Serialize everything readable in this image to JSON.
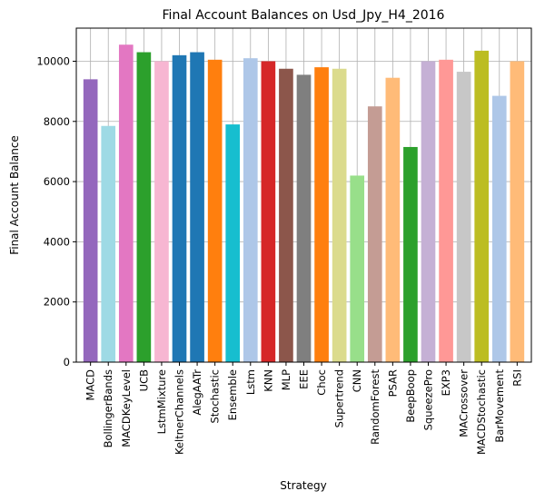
{
  "chart_data": {
    "type": "bar",
    "title": "Final Account Balances on Usd_Jpy_H4_2016",
    "xlabel": "Strategy",
    "ylabel": "Final Account Balance",
    "ylim": [
      0,
      11100
    ],
    "yticks": [
      0,
      2000,
      4000,
      6000,
      8000,
      10000
    ],
    "grid": true,
    "categories": [
      "MACD",
      "BollingerBands",
      "MACDKeyLevel",
      "UCB",
      "LstmMixture",
      "KeltnerChannels",
      "AlegAATr",
      "Stochastic",
      "Ensemble",
      "Lstm",
      "KNN",
      "MLP",
      "EEE",
      "Choc",
      "Supertrend",
      "CNN",
      "RandomForest",
      "PSAR",
      "BeepBoop",
      "SqueezePro",
      "EXP3",
      "MACrossover",
      "MACDStochastic",
      "BarMovement",
      "RSI"
    ],
    "values": [
      9400,
      7850,
      10550,
      10300,
      10000,
      10200,
      10300,
      10050,
      7900,
      10100,
      10000,
      9750,
      9550,
      9800,
      9750,
      6200,
      8500,
      9450,
      7150,
      10000,
      10050,
      9650,
      10350,
      8850,
      10000
    ],
    "colors": [
      "#9467bd",
      "#9edae5",
      "#e377c2",
      "#2ca02c",
      "#f7b6d2",
      "#1f77b4",
      "#1f77b4",
      "#ff7f0e",
      "#17becf",
      "#aec7e8",
      "#d62728",
      "#8c564b",
      "#7f7f7f",
      "#ff7f0e",
      "#dbdb8d",
      "#98df8a",
      "#c49c94",
      "#ffbb78",
      "#2ca02c",
      "#c5b0d5",
      "#ff9896",
      "#c7c7c7",
      "#bcbd22",
      "#aec7e8",
      "#ffbb78"
    ]
  }
}
